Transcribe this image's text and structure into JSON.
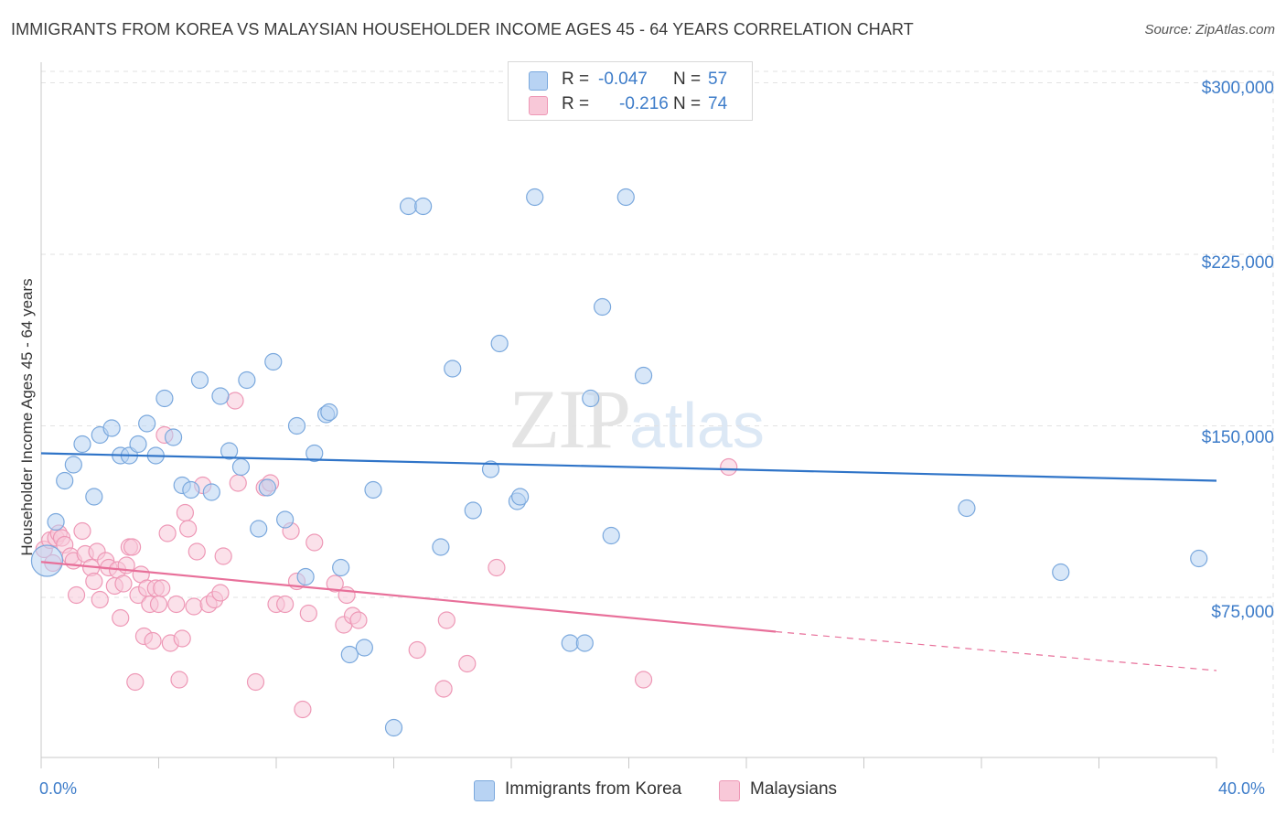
{
  "header": {
    "title": "IMMIGRANTS FROM KOREA VS MALAYSIAN HOUSEHOLDER INCOME AGES 45 - 64 YEARS CORRELATION CHART",
    "source": "Source: ZipAtlas.com"
  },
  "watermark": {
    "zip": "ZIP",
    "atlas": "atlas"
  },
  "legend": {
    "r_label": "R =",
    "n_label": "N =",
    "korea": {
      "r": "-0.047",
      "n": "57"
    },
    "malaysians": {
      "r": "-0.216",
      "n": "74"
    }
  },
  "colors": {
    "korea_fill": "#b8d3f3",
    "korea_stroke": "#7aa8dd",
    "korea_line": "#2f74c8",
    "malaysian_fill": "#f8c8d8",
    "malaysian_stroke": "#ee98b6",
    "malaysian_line": "#e8709a",
    "axis_text": "#3d7cc9",
    "grid": "#e2e2e2"
  },
  "chart_data": {
    "type": "scatter",
    "title": "IMMIGRANTS FROM KOREA VS MALAYSIAN HOUSEHOLDER INCOME AGES 45 - 64 YEARS CORRELATION CHART",
    "xlabel": "",
    "ylabel": "Householder Income Ages 45 - 64 years",
    "xlim": [
      0,
      40
    ],
    "ylim": [
      5000,
      305000
    ],
    "x_tick_labels": [
      "0.0%",
      "40.0%"
    ],
    "y_ticks": [
      75000,
      150000,
      225000,
      300000
    ],
    "y_tick_labels": [
      "$75,000",
      "$150,000",
      "$225,000",
      "$300,000"
    ],
    "grid": true,
    "legend_position": "top-center",
    "series": [
      {
        "name": "Immigrants from Korea",
        "r": -0.047,
        "n": 57,
        "trend": {
          "x": [
            0,
            40
          ],
          "y": [
            138000,
            126000
          ]
        },
        "points": [
          [
            0.2,
            91000
          ],
          [
            0.5,
            108000
          ],
          [
            0.8,
            126000
          ],
          [
            1.1,
            133000
          ],
          [
            1.4,
            142000
          ],
          [
            1.8,
            119000
          ],
          [
            2.0,
            146000
          ],
          [
            2.4,
            149000
          ],
          [
            2.7,
            137000
          ],
          [
            3.0,
            137000
          ],
          [
            3.3,
            142000
          ],
          [
            3.6,
            151000
          ],
          [
            3.9,
            137000
          ],
          [
            4.2,
            162000
          ],
          [
            4.5,
            145000
          ],
          [
            4.8,
            124000
          ],
          [
            5.1,
            122000
          ],
          [
            5.4,
            170000
          ],
          [
            5.8,
            121000
          ],
          [
            6.1,
            163000
          ],
          [
            6.4,
            139000
          ],
          [
            6.8,
            132000
          ],
          [
            7.0,
            170000
          ],
          [
            7.4,
            105000
          ],
          [
            7.7,
            123000
          ],
          [
            7.9,
            178000
          ],
          [
            8.3,
            109000
          ],
          [
            8.7,
            150000
          ],
          [
            9.0,
            84000
          ],
          [
            9.3,
            138000
          ],
          [
            9.7,
            155000
          ],
          [
            9.8,
            156000
          ],
          [
            10.2,
            88000
          ],
          [
            10.5,
            50000
          ],
          [
            11.0,
            53000
          ],
          [
            11.3,
            122000
          ],
          [
            12.0,
            18000
          ],
          [
            12.5,
            246000
          ],
          [
            13.0,
            246000
          ],
          [
            13.6,
            97000
          ],
          [
            14.0,
            175000
          ],
          [
            14.7,
            113000
          ],
          [
            15.3,
            131000
          ],
          [
            15.6,
            186000
          ],
          [
            16.2,
            117000
          ],
          [
            16.3,
            119000
          ],
          [
            16.8,
            250000
          ],
          [
            18.0,
            55000
          ],
          [
            18.5,
            55000
          ],
          [
            18.7,
            162000
          ],
          [
            19.1,
            202000
          ],
          [
            19.4,
            102000
          ],
          [
            19.9,
            250000
          ],
          [
            20.5,
            172000
          ],
          [
            31.5,
            114000
          ],
          [
            34.7,
            86000
          ],
          [
            39.4,
            92000
          ]
        ]
      },
      {
        "name": "Malaysians",
        "r": -0.216,
        "n": 74,
        "trend": {
          "x": [
            0,
            25
          ],
          "y": [
            90500,
            60000
          ]
        },
        "trend_dashed": {
          "x": [
            25,
            40
          ],
          "y": [
            60000,
            43000
          ]
        },
        "points": [
          [
            0.1,
            96000
          ],
          [
            0.3,
            100000
          ],
          [
            0.5,
            101000
          ],
          [
            0.6,
            103000
          ],
          [
            0.7,
            101000
          ],
          [
            0.8,
            98000
          ],
          [
            1.0,
            93000
          ],
          [
            1.1,
            91000
          ],
          [
            1.2,
            76000
          ],
          [
            1.4,
            104000
          ],
          [
            1.5,
            94000
          ],
          [
            1.7,
            88000
          ],
          [
            1.8,
            82000
          ],
          [
            1.9,
            95000
          ],
          [
            2.0,
            74000
          ],
          [
            2.2,
            91000
          ],
          [
            2.3,
            88000
          ],
          [
            2.5,
            80000
          ],
          [
            2.6,
            87000
          ],
          [
            2.7,
            66000
          ],
          [
            2.8,
            81000
          ],
          [
            2.9,
            89000
          ],
          [
            3.0,
            97000
          ],
          [
            3.1,
            97000
          ],
          [
            3.2,
            38000
          ],
          [
            3.3,
            76000
          ],
          [
            3.4,
            85000
          ],
          [
            3.5,
            58000
          ],
          [
            3.6,
            79000
          ],
          [
            3.7,
            72000
          ],
          [
            3.8,
            56000
          ],
          [
            3.9,
            79000
          ],
          [
            4.0,
            72000
          ],
          [
            4.1,
            79000
          ],
          [
            4.2,
            146000
          ],
          [
            4.3,
            103000
          ],
          [
            4.4,
            55000
          ],
          [
            4.6,
            72000
          ],
          [
            4.7,
            39000
          ],
          [
            4.8,
            57000
          ],
          [
            4.9,
            112000
          ],
          [
            5.0,
            105000
          ],
          [
            5.2,
            71000
          ],
          [
            5.3,
            95000
          ],
          [
            5.5,
            124000
          ],
          [
            5.7,
            72000
          ],
          [
            5.9,
            74000
          ],
          [
            6.1,
            77000
          ],
          [
            6.2,
            93000
          ],
          [
            6.6,
            161000
          ],
          [
            6.7,
            125000
          ],
          [
            7.3,
            38000
          ],
          [
            7.6,
            123000
          ],
          [
            7.8,
            125000
          ],
          [
            8.0,
            72000
          ],
          [
            8.3,
            72000
          ],
          [
            8.5,
            104000
          ],
          [
            8.7,
            82000
          ],
          [
            8.9,
            26000
          ],
          [
            9.1,
            68000
          ],
          [
            9.3,
            99000
          ],
          [
            10.0,
            81000
          ],
          [
            10.3,
            63000
          ],
          [
            10.4,
            76000
          ],
          [
            10.6,
            67000
          ],
          [
            10.8,
            65000
          ],
          [
            12.8,
            52000
          ],
          [
            13.7,
            35000
          ],
          [
            13.8,
            65000
          ],
          [
            14.5,
            46000
          ],
          [
            15.5,
            88000
          ],
          [
            20.5,
            39000
          ],
          [
            23.4,
            132000
          ],
          [
            0.4,
            90000
          ]
        ]
      }
    ]
  },
  "bottom_legend": {
    "korea": "Immigrants from Korea",
    "malaysians": "Malaysians"
  }
}
